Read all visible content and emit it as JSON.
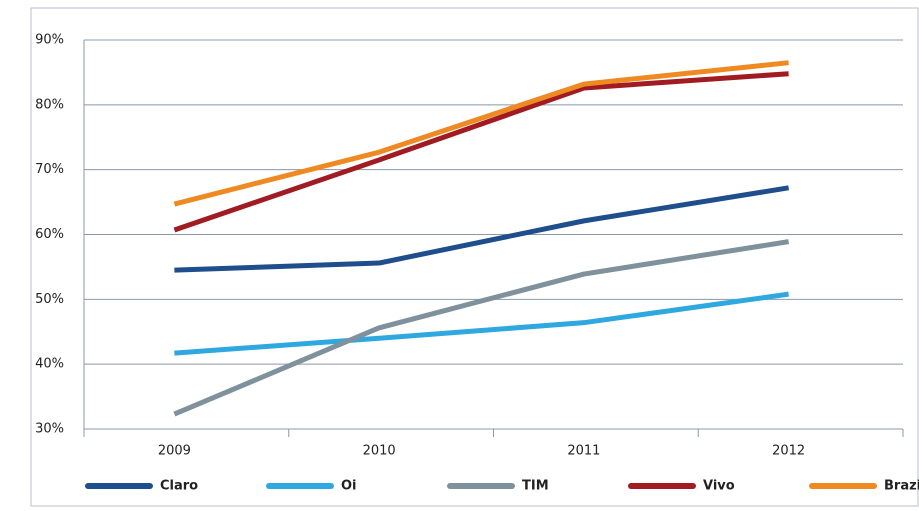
{
  "chart_data": {
    "type": "line",
    "categories": [
      "2009",
      "2010",
      "2011",
      "2012"
    ],
    "series": [
      {
        "name": "Claro",
        "color": "#1f4e8c",
        "values": [
          54.5,
          55.6,
          62.1,
          67.2
        ]
      },
      {
        "name": "Oi",
        "color": "#2fa8e0",
        "values": [
          41.7,
          44.0,
          46.4,
          50.8
        ]
      },
      {
        "name": "TIM",
        "color": "#7f919c",
        "values": [
          32.3,
          45.6,
          53.9,
          58.9
        ]
      },
      {
        "name": "Vivo",
        "color": "#a01c22",
        "values": [
          60.7,
          71.5,
          82.6,
          84.8
        ]
      },
      {
        "name": "Brazil",
        "color": "#ef8a22",
        "values": [
          64.7,
          72.7,
          83.2,
          86.5
        ]
      }
    ],
    "ylim": [
      30,
      90
    ],
    "yticks": [
      {
        "value": 30,
        "label": "30%"
      },
      {
        "value": 40,
        "label": "40%"
      },
      {
        "value": 50,
        "label": "50%"
      },
      {
        "value": 60,
        "label": "60%"
      },
      {
        "value": 70,
        "label": "70%"
      },
      {
        "value": 80,
        "label": "80%"
      },
      {
        "value": 90,
        "label": "90%"
      }
    ],
    "grid": true,
    "legend": "bottom"
  }
}
